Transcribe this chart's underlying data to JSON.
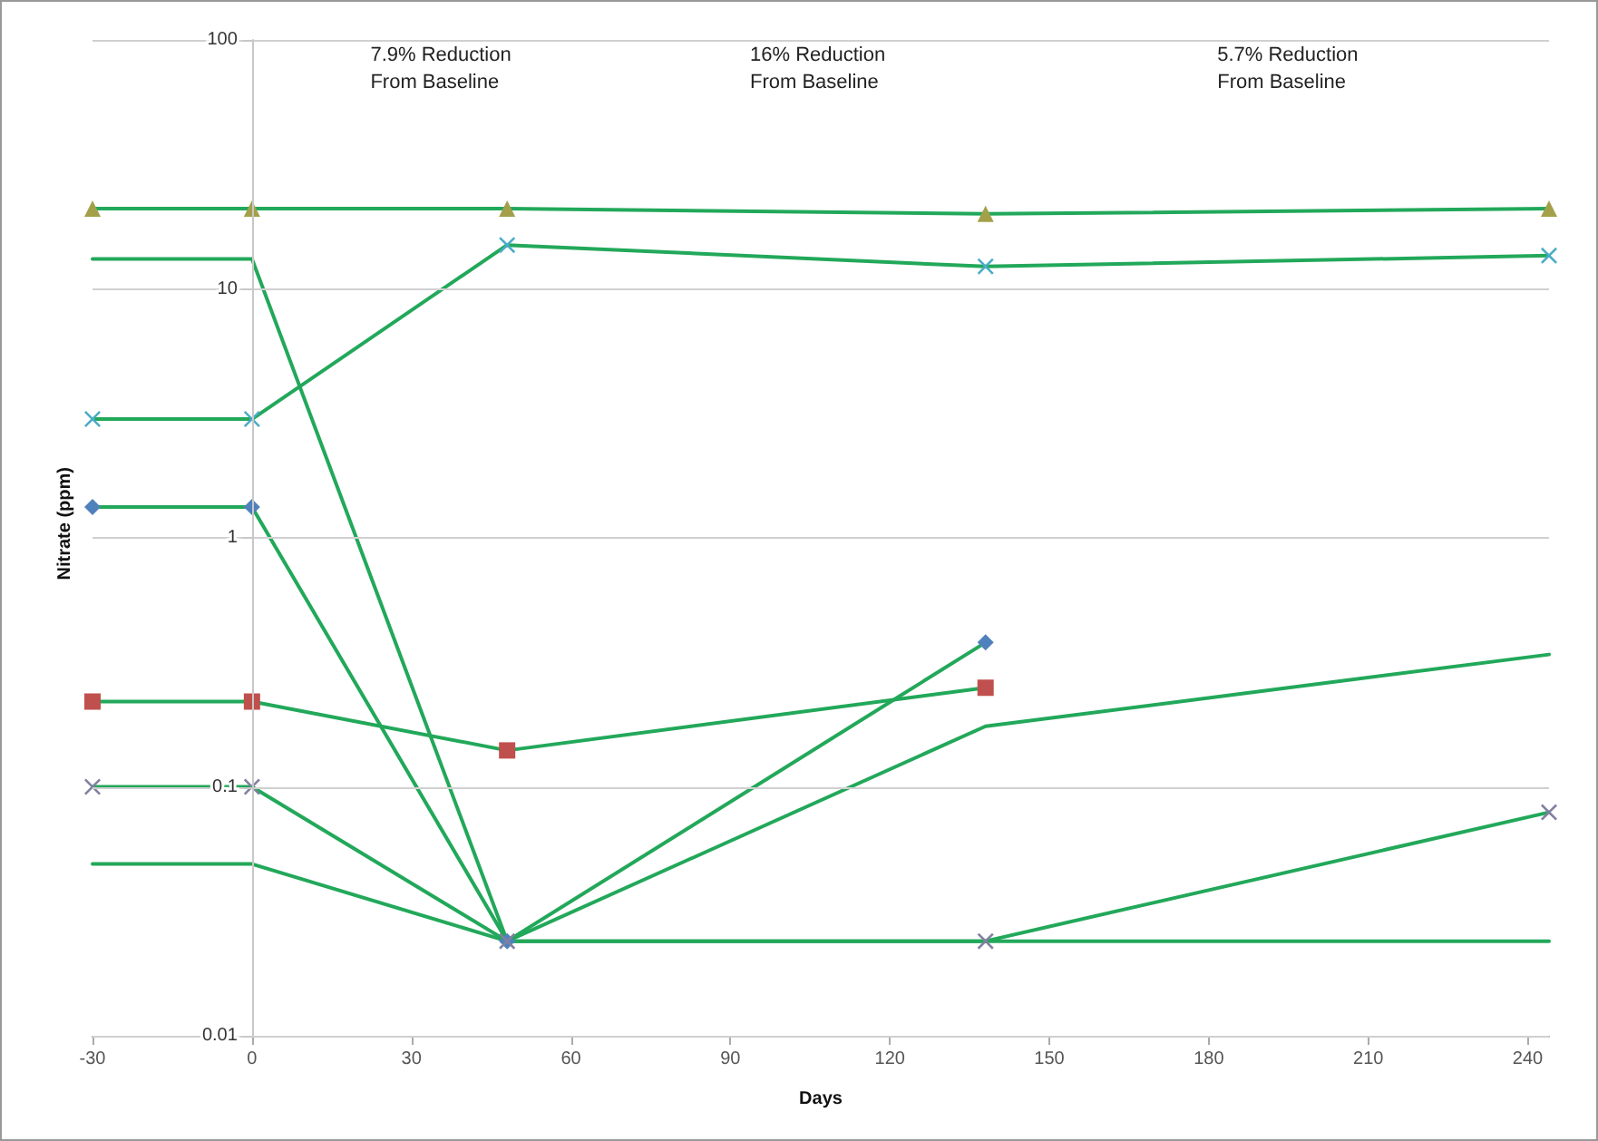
{
  "chart_data": {
    "type": "line",
    "xlabel": "Days",
    "ylabel": "Nitrate (ppm)",
    "annotations": [
      "7.9% Reduction\nFrom Baseline",
      "16% Reduction\nFrom Baseline",
      "5.7% Reduction\nFrom Baseline"
    ],
    "log": "y",
    "grid": "y",
    "line_style": "solid",
    "xlim": [
      -30,
      244
    ],
    "xticks": [
      -30,
      0,
      30,
      60,
      90,
      120,
      150,
      180,
      210,
      240
    ],
    "ylim": [
      0.01,
      100
    ],
    "yticks": [
      0.01,
      0.1,
      1,
      10,
      100
    ],
    "series": [
      {
        "x": [
          -30,
          0,
          48,
          138,
          244
        ],
        "values": [
          21,
          21,
          21,
          20,
          21
        ],
        "color": "#22a85a",
        "marker": "triangle",
        "colors": [
          "#a4a04a",
          "#a4a04a",
          "#a4a04a",
          "#a4a04a",
          "#a4a04a"
        ]
      },
      {
        "x": [
          -30,
          0,
          48,
          138,
          244
        ],
        "values": [
          3,
          3,
          15,
          12.3,
          13.6
        ],
        "color": "#22a85a",
        "marker": "cross",
        "colors": [
          "#4bacc6",
          "#4bacc6",
          "#4bacc6",
          "#4bacc6",
          "#4bacc6"
        ]
      },
      {
        "x": [
          -30,
          0,
          48,
          138,
          244
        ],
        "values": [
          13.2,
          13.2,
          0.024,
          0.024,
          0.024
        ],
        "color": "#22a85a",
        "marker": "none"
      },
      {
        "x": [
          -30,
          0,
          48,
          138
        ],
        "values": [
          1.33,
          1.33,
          0.024,
          0.38
        ],
        "color": "#22a85a",
        "marker": "diamond",
        "colors": [
          "#4f81bd",
          "#4f81bd",
          "#4f81bd",
          "#4f81bd"
        ]
      },
      {
        "x": [
          -30,
          0,
          48,
          138
        ],
        "values": [
          0.22,
          0.22,
          0.14,
          0.25
        ],
        "color": "#22a85a",
        "marker": "square",
        "colors": [
          "#c0504d",
          "#c0504d",
          "#c0504d",
          "#c0504d"
        ]
      },
      {
        "x": [
          -30,
          0,
          48,
          138,
          244
        ],
        "values": [
          0.1,
          0.1,
          0.024,
          0.024,
          0.079
        ],
        "color": "#22a85a",
        "marker": "cross",
        "colors": [
          "#8080a0",
          "#8080a0",
          "#8080a0",
          "#8080a0",
          "#8080a0"
        ]
      },
      {
        "x": [
          -30,
          0,
          48,
          138,
          244
        ],
        "values": [
          0.049,
          0.049,
          0.024,
          0.175,
          0.34
        ],
        "color": "#22a85a",
        "marker": "none"
      }
    ]
  }
}
